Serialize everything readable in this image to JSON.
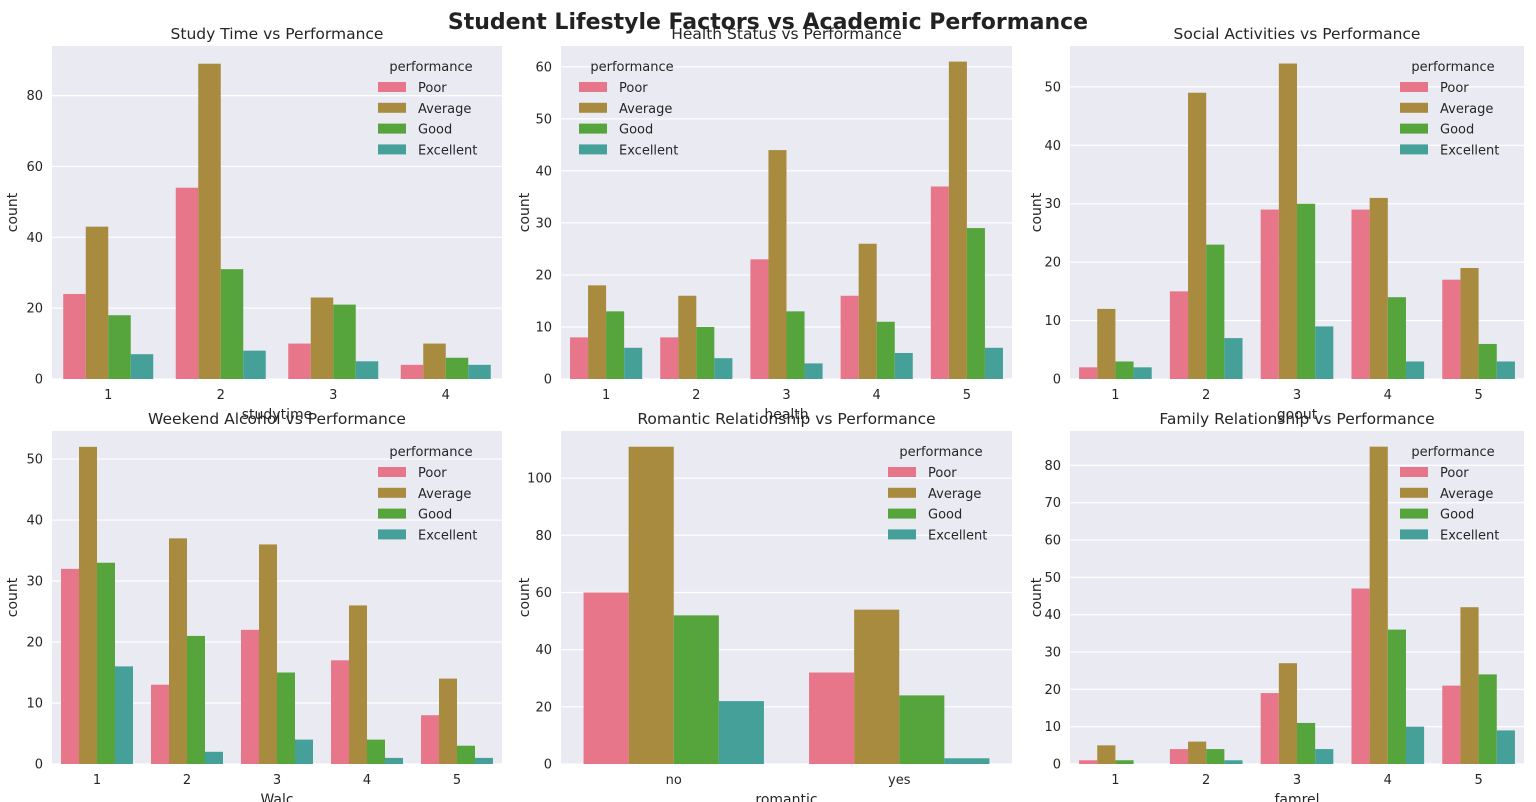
{
  "figure": {
    "suptitle": "Student Lifestyle Factors vs Academic Performance"
  },
  "colors": {
    "Poor": "#e8768a",
    "Average": "#a88b3f",
    "Good": "#55a43c",
    "Excellent": "#46a09a",
    "axes_bg": "#eaeaf2",
    "grid": "#ffffff"
  },
  "chart_data": [
    {
      "type": "bar",
      "title": "Study Time vs Performance",
      "xlabel": "studytime",
      "ylabel": "count",
      "categories": [
        "1",
        "2",
        "3",
        "4"
      ],
      "ylim": [
        0,
        94
      ],
      "yticks": [
        0,
        20,
        40,
        60,
        80
      ],
      "legend": {
        "title": "performance",
        "placement": "top-right"
      },
      "series": [
        {
          "name": "Poor",
          "values": [
            24,
            54,
            10,
            4
          ]
        },
        {
          "name": "Average",
          "values": [
            43,
            89,
            23,
            10
          ]
        },
        {
          "name": "Good",
          "values": [
            18,
            31,
            21,
            6
          ]
        },
        {
          "name": "Excellent",
          "values": [
            7,
            8,
            5,
            4
          ]
        }
      ]
    },
    {
      "type": "bar",
      "title": "Health Status vs Performance",
      "xlabel": "health",
      "ylabel": "count",
      "categories": [
        "1",
        "2",
        "3",
        "4",
        "5"
      ],
      "ylim": [
        0,
        64
      ],
      "yticks": [
        0,
        10,
        20,
        30,
        40,
        50,
        60
      ],
      "legend": {
        "title": "performance",
        "placement": "top-left"
      },
      "series": [
        {
          "name": "Poor",
          "values": [
            8,
            8,
            23,
            16,
            37
          ]
        },
        {
          "name": "Average",
          "values": [
            18,
            16,
            44,
            26,
            61
          ]
        },
        {
          "name": "Good",
          "values": [
            13,
            10,
            13,
            11,
            29
          ]
        },
        {
          "name": "Excellent",
          "values": [
            6,
            4,
            3,
            5,
            6
          ]
        }
      ]
    },
    {
      "type": "bar",
      "title": "Social Activities vs Performance",
      "xlabel": "goout",
      "ylabel": "count",
      "categories": [
        "1",
        "2",
        "3",
        "4",
        "5"
      ],
      "ylim": [
        0,
        57
      ],
      "yticks": [
        0,
        10,
        20,
        30,
        40,
        50
      ],
      "legend": {
        "title": "performance",
        "placement": "top-right"
      },
      "series": [
        {
          "name": "Poor",
          "values": [
            2,
            15,
            29,
            29,
            17
          ]
        },
        {
          "name": "Average",
          "values": [
            12,
            49,
            54,
            31,
            19
          ]
        },
        {
          "name": "Good",
          "values": [
            3,
            23,
            30,
            14,
            6
          ]
        },
        {
          "name": "Excellent",
          "values": [
            2,
            7,
            9,
            3,
            3
          ]
        }
      ]
    },
    {
      "type": "bar",
      "title": "Weekend Alcohol vs Performance",
      "xlabel": "Walc",
      "ylabel": "count",
      "categories": [
        "1",
        "2",
        "3",
        "4",
        "5"
      ],
      "ylim": [
        0,
        54.6
      ],
      "yticks": [
        0,
        10,
        20,
        30,
        40,
        50
      ],
      "legend": {
        "title": "performance",
        "placement": "top-right"
      },
      "series": [
        {
          "name": "Poor",
          "values": [
            32,
            13,
            22,
            17,
            8
          ]
        },
        {
          "name": "Average",
          "values": [
            52,
            37,
            36,
            26,
            14
          ]
        },
        {
          "name": "Good",
          "values": [
            33,
            21,
            15,
            4,
            3
          ]
        },
        {
          "name": "Excellent",
          "values": [
            16,
            2,
            4,
            1,
            1
          ]
        }
      ]
    },
    {
      "type": "bar",
      "title": "Romantic Relationship vs Performance",
      "xlabel": "romantic",
      "ylabel": "count",
      "categories": [
        "no",
        "yes"
      ],
      "ylim": [
        0,
        116.5
      ],
      "yticks": [
        0,
        20,
        40,
        60,
        80,
        100
      ],
      "legend": {
        "title": "performance",
        "placement": "top-right"
      },
      "series": [
        {
          "name": "Poor",
          "values": [
            60,
            32
          ]
        },
        {
          "name": "Average",
          "values": [
            111,
            54
          ]
        },
        {
          "name": "Good",
          "values": [
            52,
            24
          ]
        },
        {
          "name": "Excellent",
          "values": [
            22,
            2
          ]
        }
      ]
    },
    {
      "type": "bar",
      "title": "Family Relationship vs Performance",
      "xlabel": "famrel",
      "ylabel": "count",
      "categories": [
        "1",
        "2",
        "3",
        "4",
        "5"
      ],
      "ylim": [
        0,
        89.2
      ],
      "yticks": [
        0,
        10,
        20,
        30,
        40,
        50,
        60,
        70,
        80
      ],
      "legend": {
        "title": "performance",
        "placement": "top-right"
      },
      "series": [
        {
          "name": "Poor",
          "values": [
            1,
            4,
            19,
            47,
            21
          ]
        },
        {
          "name": "Average",
          "values": [
            5,
            6,
            27,
            85,
            42
          ]
        },
        {
          "name": "Good",
          "values": [
            1,
            4,
            11,
            36,
            24
          ]
        },
        {
          "name": "Excellent",
          "values": [
            0,
            1,
            4,
            10,
            9
          ]
        }
      ]
    }
  ]
}
